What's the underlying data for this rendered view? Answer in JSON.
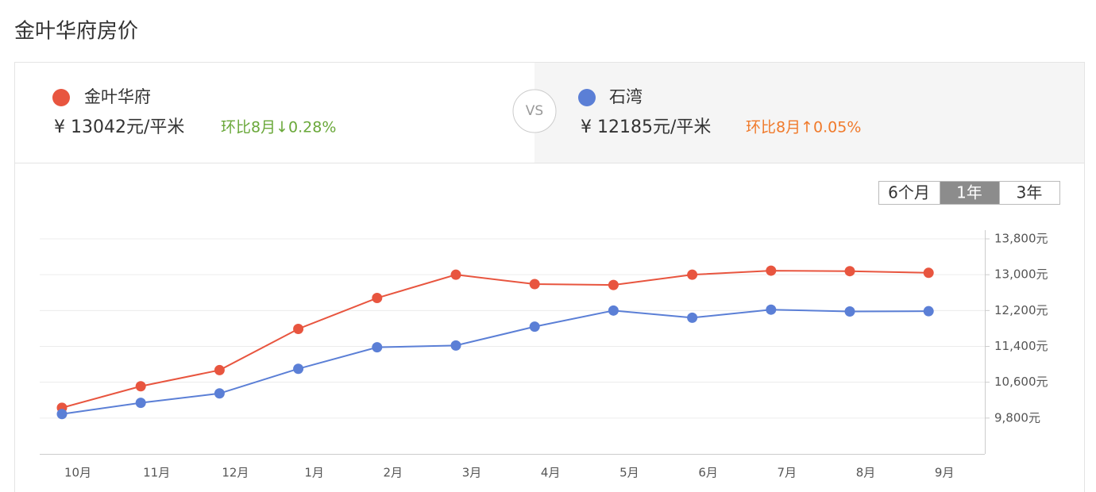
{
  "header": {
    "title": "金叶华府房价"
  },
  "compare": [
    {
      "name": "金叶华府",
      "price": "¥ 13042元/平米",
      "change": "环比8月↓0.28%"
    },
    {
      "name": "石湾",
      "price": "¥ 12185元/平米",
      "change": "环比8月↑0.05%"
    }
  ],
  "vs": "VS",
  "range_buttons": [
    "6个月",
    "1年",
    "3年"
  ],
  "active_range": 1,
  "chart_data": {
    "type": "line",
    "categories": [
      "10月",
      "11月",
      "12月",
      "1月",
      "2月",
      "3月",
      "4月",
      "5月",
      "6月",
      "7月",
      "8月",
      "9月"
    ],
    "series": [
      {
        "name": "金叶华府",
        "color": "#e8553f",
        "values": [
          10030,
          10510,
          10870,
          11790,
          12480,
          13000,
          12790,
          12770,
          13000,
          13090,
          13079,
          13042
        ]
      },
      {
        "name": "石湾",
        "color": "#5b7fd6",
        "values": [
          9890,
          10140,
          10350,
          10900,
          11380,
          11420,
          11840,
          12200,
          12040,
          12220,
          12179,
          12185
        ]
      }
    ],
    "ylim": [
      9000,
      13800
    ],
    "yticks": [
      {
        "value": 13800,
        "label": "13,800元"
      },
      {
        "value": 13000,
        "label": "13,000元"
      },
      {
        "value": 12200,
        "label": "12,200元"
      },
      {
        "value": 11400,
        "label": "11,400元"
      },
      {
        "value": 10600,
        "label": "10,600元"
      },
      {
        "value": 9800,
        "label": "9,800元"
      }
    ],
    "grid": true
  }
}
